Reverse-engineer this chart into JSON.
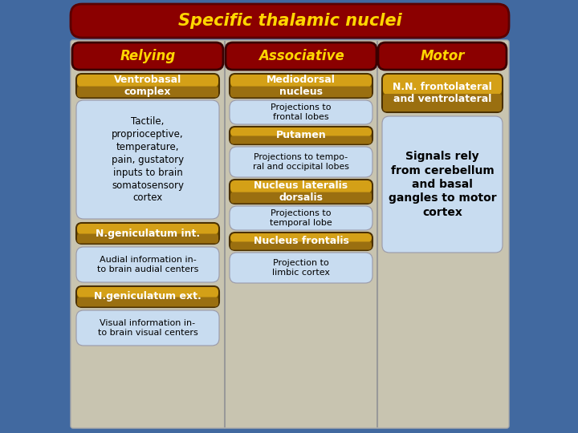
{
  "title": "Specific thalamic nuclei",
  "title_color": "#FFD700",
  "title_bg": "#8B0000",
  "bg_color": "#4169A0",
  "table_bg": "#C8C4B0",
  "columns": [
    "Relying",
    "Associative",
    "Motor"
  ],
  "col_header_bg": "#8B0000",
  "col_header_color": "#FFD700",
  "white_box_bg": "#C8DCF0",
  "relying_items": [
    {
      "type": "gold",
      "text": "Ventrobasal\ncomplex"
    },
    {
      "type": "white",
      "text": "Tactile,\nproprioceptive,\ntemperature,\npain, gustatory\ninputs to brain\nsomatosensory\ncortex"
    },
    {
      "type": "gold",
      "text": "N.geniculatum int."
    },
    {
      "type": "white",
      "text": "Audial information in-\nto brain audial centers"
    },
    {
      "type": "gold",
      "text": "N.geniculatum ext."
    },
    {
      "type": "white",
      "text": "Visual information in-\nto brain visual centers"
    }
  ],
  "associative_items": [
    {
      "type": "gold",
      "text": "Mediodorsal\nnucleus"
    },
    {
      "type": "white",
      "text": "Projections to\nfrontal lobes"
    },
    {
      "type": "gold",
      "text": "Putamen"
    },
    {
      "type": "white",
      "text": "Projections to tempo-\nral and occipital lobes"
    },
    {
      "type": "gold",
      "text": "Nucleus lateralis\ndorsalis"
    },
    {
      "type": "white",
      "text": "Projections to\ntemporal lobe"
    },
    {
      "type": "gold",
      "text": "Nucleus frontalis"
    },
    {
      "type": "white",
      "text": "Projection to\nlimbic cortex"
    }
  ],
  "motor_items": [
    {
      "type": "gold",
      "text": "N.N. frontolateral\nand ventrolateral"
    },
    {
      "type": "white_large",
      "text": "Signals rely\nfrom cerebellum\nand basal\ngangles to motor\ncortex"
    }
  ]
}
